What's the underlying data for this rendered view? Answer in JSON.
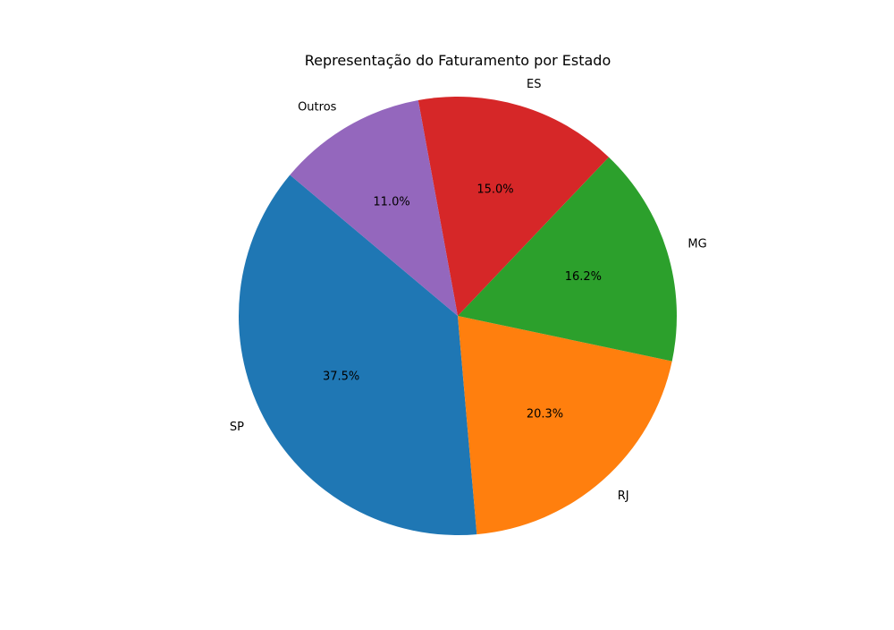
{
  "chart_data": {
    "type": "pie",
    "title": "Representação do Faturamento por Estado",
    "labels": [
      "SP",
      "RJ",
      "MG",
      "ES",
      "Outros"
    ],
    "values": [
      37.5,
      20.3,
      16.2,
      15.0,
      11.0
    ],
    "value_labels": [
      "37.5%",
      "20.3%",
      "16.2%",
      "15.0%",
      "11.0%"
    ],
    "colors": [
      "#1f77b4",
      "#ff7f0e",
      "#2ca02c",
      "#d62728",
      "#9467bd"
    ],
    "start_angle_deg": 140,
    "direction": "counterclockwise",
    "legend": "none",
    "grid": false
  }
}
